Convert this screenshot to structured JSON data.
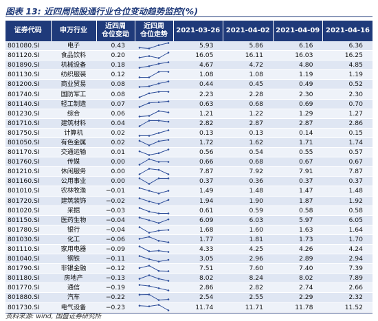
{
  "title": "图表 13:  近四周陆股通行业仓位变动趋势监控(%)",
  "headers": {
    "code": "证券代码",
    "industry": "申万行业",
    "change_l1": "近四周",
    "change_l2": "仓位变动",
    "trend_l1": "近四周",
    "trend_l2": "仓位走势",
    "dates": [
      "2021-03-26",
      "2021-04-02",
      "2021-04-09",
      "2021-04-16"
    ]
  },
  "rows": [
    {
      "code": "801080.SI",
      "industry": "电子",
      "change": "0.43",
      "v": [
        "5.93",
        "5.86",
        "6.16",
        "6.36"
      ]
    },
    {
      "code": "801120.SI",
      "industry": "食品饮料",
      "change": "0.20",
      "v": [
        "16.05",
        "16.11",
        "16.03",
        "16.25"
      ]
    },
    {
      "code": "801890.SI",
      "industry": "机械设备",
      "change": "0.18",
      "v": [
        "4.67",
        "4.72",
        "4.80",
        "4.85"
      ]
    },
    {
      "code": "801130.SI",
      "industry": "纺织服装",
      "change": "0.12",
      "v": [
        "1.08",
        "1.08",
        "1.19",
        "1.19"
      ]
    },
    {
      "code": "801200.SI",
      "industry": "商业贸易",
      "change": "0.08",
      "v": [
        "0.44",
        "0.45",
        "0.49",
        "0.52"
      ]
    },
    {
      "code": "801740.SI",
      "industry": "国防军工",
      "change": "0.08",
      "v": [
        "2.23",
        "2.28",
        "2.30",
        "2.30"
      ]
    },
    {
      "code": "801140.SI",
      "industry": "轻工制造",
      "change": "0.07",
      "v": [
        "0.63",
        "0.68",
        "0.69",
        "0.70"
      ]
    },
    {
      "code": "801230.SI",
      "industry": "综合",
      "change": "0.06",
      "v": [
        "1.21",
        "1.22",
        "1.29",
        "1.27"
      ]
    },
    {
      "code": "801710.SI",
      "industry": "建筑材料",
      "change": "0.04",
      "v": [
        "2.82",
        "2.87",
        "2.87",
        "2.86"
      ]
    },
    {
      "code": "801750.SI",
      "industry": "计算机",
      "change": "0.02",
      "v": [
        "0.13",
        "0.13",
        "0.14",
        "0.15"
      ]
    },
    {
      "code": "801050.SI",
      "industry": "有色金属",
      "change": "0.02",
      "v": [
        "1.72",
        "1.62",
        "1.71",
        "1.74"
      ]
    },
    {
      "code": "801170.SI",
      "industry": "交通运输",
      "change": "0.01",
      "v": [
        "0.56",
        "0.54",
        "0.55",
        "0.57"
      ]
    },
    {
      "code": "801760.SI",
      "industry": "传媒",
      "change": "0.00",
      "v": [
        "0.66",
        "0.68",
        "0.67",
        "0.67"
      ]
    },
    {
      "code": "801210.SI",
      "industry": "休闲服务",
      "change": "0.00",
      "v": [
        "7.87",
        "7.92",
        "7.91",
        "7.87"
      ]
    },
    {
      "code": "801160.SI",
      "industry": "公用事业",
      "change": "0.00",
      "v": [
        "0.37",
        "0.36",
        "0.37",
        "0.37"
      ]
    },
    {
      "code": "801010.SI",
      "industry": "农林牧渔",
      "change": "−0.01",
      "v": [
        "1.49",
        "1.48",
        "1.47",
        "1.48"
      ]
    },
    {
      "code": "801720.SI",
      "industry": "建筑装饰",
      "change": "−0.02",
      "v": [
        "1.94",
        "1.90",
        "1.87",
        "1.92"
      ]
    },
    {
      "code": "801020.SI",
      "industry": "采掘",
      "change": "−0.03",
      "v": [
        "0.61",
        "0.59",
        "0.58",
        "0.58"
      ]
    },
    {
      "code": "801150.SI",
      "industry": "医药生物",
      "change": "−0.04",
      "v": [
        "6.09",
        "6.03",
        "5.97",
        "6.05"
      ]
    },
    {
      "code": "801780.SI",
      "industry": "银行",
      "change": "−0.04",
      "v": [
        "1.68",
        "1.60",
        "1.63",
        "1.64"
      ]
    },
    {
      "code": "801030.SI",
      "industry": "化工",
      "change": "−0.06",
      "v": [
        "1.77",
        "1.81",
        "1.73",
        "1.70"
      ]
    },
    {
      "code": "801110.SI",
      "industry": "家用电器",
      "change": "−0.09",
      "v": [
        "4.33",
        "4.25",
        "4.26",
        "4.24"
      ]
    },
    {
      "code": "801040.SI",
      "industry": "钢铁",
      "change": "−0.11",
      "v": [
        "3.05",
        "2.96",
        "2.89",
        "2.94"
      ]
    },
    {
      "code": "801790.SI",
      "industry": "非银金融",
      "change": "−0.12",
      "v": [
        "7.51",
        "7.60",
        "7.40",
        "7.39"
      ]
    },
    {
      "code": "801180.SI",
      "industry": "房地产",
      "change": "−0.13",
      "v": [
        "8.02",
        "8.24",
        "8.02",
        "7.89"
      ]
    },
    {
      "code": "801770.SI",
      "industry": "通信",
      "change": "−0.19",
      "v": [
        "2.86",
        "2.82",
        "2.74",
        "2.66"
      ]
    },
    {
      "code": "801880.SI",
      "industry": "汽车",
      "change": "−0.22",
      "v": [
        "2.54",
        "2.55",
        "2.29",
        "2.32"
      ]
    },
    {
      "code": "801730.SI",
      "industry": "电气设备",
      "change": "−0.23",
      "v": [
        "11.74",
        "11.71",
        "11.78",
        "11.52"
      ]
    }
  ],
  "source": "资料来源: wind, 国盛证券研究所",
  "colors": {
    "header_bg": "#1f3a7a",
    "row_odd": "#dfe6f3",
    "row_even": "#eef2f9",
    "sparkline": "#2f4f9a"
  }
}
